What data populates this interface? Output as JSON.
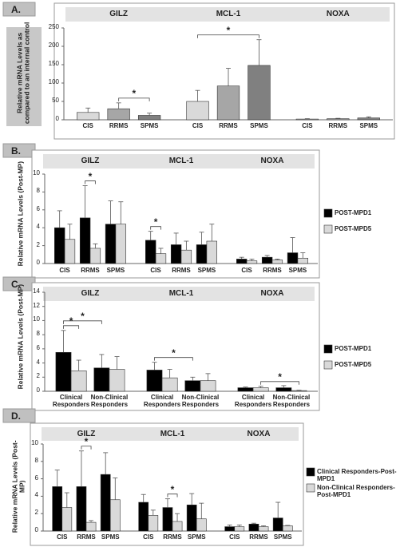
{
  "chart_data": [
    {
      "type": "bar",
      "panel": "A.",
      "ylabel": "Relative mRNA Levels as compared to an internal control",
      "groups": [
        "GILZ",
        "MCL-1",
        "NOXA"
      ],
      "categories": [
        "CIS",
        "RRMS",
        "SPMS"
      ],
      "category_colors": [
        "#d9d9d9",
        "#a6a6a6",
        "#808080"
      ],
      "series": [
        {
          "values": [
            [
              20,
              30,
              12
            ],
            [
              50,
              92,
              148
            ],
            [
              2,
              3,
              5
            ]
          ],
          "errors": [
            [
              12,
              16,
              6
            ],
            [
              30,
              48,
              70
            ],
            [
              1,
              1,
              3
            ]
          ]
        }
      ],
      "ylim": [
        0,
        250
      ],
      "yticks": [
        0,
        50,
        100,
        150,
        200,
        250
      ],
      "significance": [
        {
          "group": 0,
          "a": [
            1,
            0
          ],
          "b": [
            2,
            0
          ],
          "label": "*"
        },
        {
          "group": 1,
          "a": [
            0,
            0
          ],
          "b": [
            2,
            0
          ],
          "label": "*"
        }
      ]
    },
    {
      "type": "bar",
      "panel": "B.",
      "ylabel": "Relative mRNA Levels (Post-MP)",
      "groups": [
        "GILZ",
        "MCL-1",
        "NOXA"
      ],
      "categories": [
        "CIS",
        "RRMS",
        "SPMS"
      ],
      "series": [
        {
          "name": "POST-MPD1",
          "color": "#000000",
          "values": [
            [
              4.0,
              5.1,
              4.4
            ],
            [
              2.6,
              2.1,
              2.1
            ],
            [
              0.5,
              0.7,
              1.2
            ]
          ],
          "errors": [
            [
              1.9,
              3.6,
              2.6
            ],
            [
              1.0,
              1.3,
              1.4
            ],
            [
              0.2,
              0.2,
              1.7
            ]
          ]
        },
        {
          "name": "POST-MPD5",
          "color": "#d9d9d9",
          "values": [
            [
              2.7,
              1.7,
              4.4
            ],
            [
              1.1,
              1.5,
              2.5
            ],
            [
              0.3,
              0.4,
              0.6
            ]
          ],
          "errors": [
            [
              1.7,
              0.5,
              2.5
            ],
            [
              0.6,
              1.0,
              1.9
            ],
            [
              0.2,
              0.1,
              0.6
            ]
          ]
        }
      ],
      "ylim": [
        0,
        10
      ],
      "yticks": [
        0,
        2,
        4,
        6,
        8,
        10
      ],
      "legend": "right",
      "significance": [
        {
          "group": 0,
          "a": [
            1,
            0
          ],
          "b": [
            1,
            1
          ],
          "label": "*"
        },
        {
          "group": 1,
          "a": [
            0,
            0
          ],
          "b": [
            0,
            1
          ],
          "label": "*"
        }
      ]
    },
    {
      "type": "bar",
      "panel": "C.",
      "ylabel": "Relative mRNA Levels (Post-MP)",
      "groups": [
        "GILZ",
        "MCL-1",
        "NOXA"
      ],
      "categories": [
        "Clinical Responders",
        "Non-Clinical Responders"
      ],
      "series": [
        {
          "name": "POST-MPD1",
          "color": "#000000",
          "values": [
            [
              5.5,
              3.3
            ],
            [
              3.0,
              1.5
            ],
            [
              0.5,
              0.5
            ]
          ],
          "errors": [
            [
              3.1,
              1.9
            ],
            [
              1.1,
              0.5
            ],
            [
              0.1,
              0.3
            ]
          ]
        },
        {
          "name": "POST-MPD5",
          "color": "#d9d9d9",
          "values": [
            [
              2.9,
              3.1
            ],
            [
              1.9,
              1.5
            ],
            [
              0.5,
              0.1
            ]
          ],
          "errors": [
            [
              1.5,
              1.8
            ],
            [
              1.2,
              1.0
            ],
            [
              0.2,
              0.05
            ]
          ]
        }
      ],
      "ylim": [
        0,
        14
      ],
      "yticks": [
        0,
        2,
        4,
        6,
        8,
        10,
        12,
        14
      ],
      "legend": "right",
      "significance": [
        {
          "group": 0,
          "a": [
            0,
            0
          ],
          "b": [
            0,
            1
          ],
          "label": "*"
        },
        {
          "group": 0,
          "a": [
            0,
            0
          ],
          "b": [
            1,
            0
          ],
          "label": "*"
        },
        {
          "group": 1,
          "a": [
            0,
            0
          ],
          "b": [
            1,
            0
          ],
          "label": "*"
        },
        {
          "group": 2,
          "a": [
            0,
            1
          ],
          "b": [
            1,
            1
          ],
          "label": "*"
        }
      ]
    },
    {
      "type": "bar",
      "panel": "D.",
      "ylabel": "Relative mRNA Levels (Post-MP)",
      "groups": [
        "GILZ",
        "MCL-1",
        "NOXA"
      ],
      "categories": [
        "CIS",
        "RRMS",
        "SPMS"
      ],
      "series": [
        {
          "name": "Clinical Responders-Post-MPD1",
          "color": "#000000",
          "values": [
            [
              5.1,
              5.1,
              6.5
            ],
            [
              3.3,
              2.7,
              3.0
            ],
            [
              0.5,
              0.8,
              1.5
            ]
          ],
          "errors": [
            [
              1.9,
              4.1,
              2.5
            ],
            [
              0.9,
              1.0,
              1.3
            ],
            [
              0.2,
              0.1,
              1.8
            ]
          ]
        },
        {
          "name": "Non-Clinical Responders-Post-MPD1",
          "color": "#d9d9d9",
          "values": [
            [
              2.7,
              1.0,
              3.6
            ],
            [
              1.8,
              1.1,
              1.4
            ],
            [
              0.5,
              0.5,
              0.6
            ]
          ],
          "errors": [
            [
              1.7,
              0.2,
              2.5
            ],
            [
              0.6,
              0.9,
              1.8
            ],
            [
              0.2,
              0.1,
              0.05
            ]
          ]
        }
      ],
      "ylim": [
        0,
        10
      ],
      "yticks": [
        0,
        2,
        4,
        6,
        8,
        10
      ],
      "legend": "right",
      "significance": [
        {
          "group": 0,
          "a": [
            1,
            0
          ],
          "b": [
            1,
            1
          ],
          "label": "*"
        },
        {
          "group": 1,
          "a": [
            1,
            0
          ],
          "b": [
            1,
            1
          ],
          "label": "*"
        }
      ]
    }
  ]
}
